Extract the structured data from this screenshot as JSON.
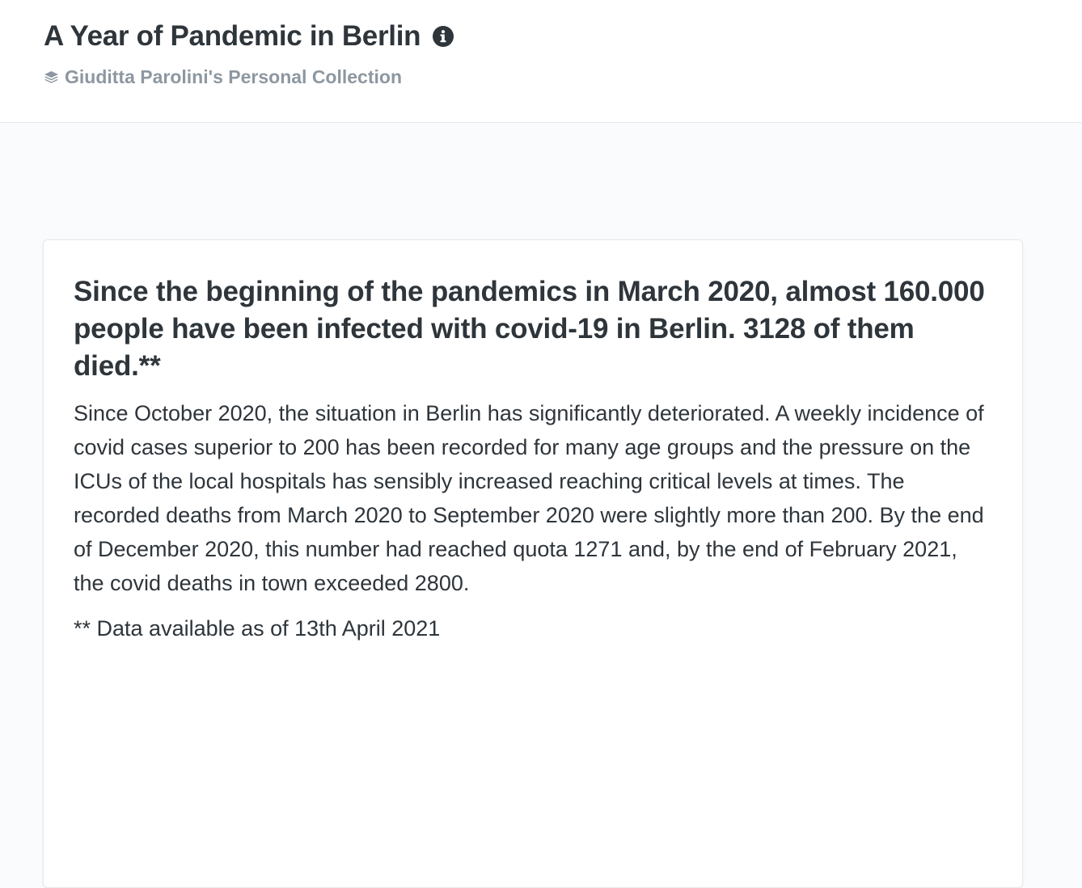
{
  "header": {
    "title": "A Year of Pandemic in Berlin",
    "info_icon": "info-circle-icon",
    "collection": {
      "icon": "collection-stack-icon",
      "label": "Giuditta Parolini's Personal Collection"
    }
  },
  "card": {
    "heading": "Since the beginning of the pandemics in March 2020, almost 160.000 people have been infected with covid-19 in Berlin. 3128 of them died.**",
    "paragraph": "Since October 2020, the situation in Berlin has significantly deteriorated. A weekly incidence of covid cases superior to 200 has been recorded for many age groups and the pressure on the ICUs of the local hospitals has sensibly increased reaching critical levels at times. The recorded deaths from March 2020 to September 2020 were slightly more than 200. By the end of December 2020, this number had reached quota 1271 and, by the end of February 2021, the covid deaths in town exceeded 2800.",
    "footnote": "** Data available as of 13th April 2021"
  },
  "colors": {
    "title_text": "#2e353b",
    "collection_text": "#8d97a1",
    "page_background": "#f9fbfc",
    "card_background": "#ffffff",
    "border": "#e6e9ec"
  }
}
